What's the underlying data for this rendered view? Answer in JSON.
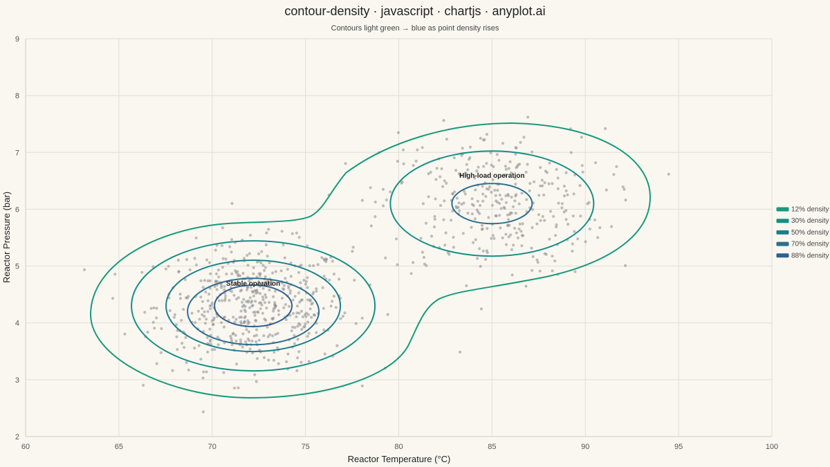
{
  "chart_data": {
    "type": "contour",
    "title": "contour-density · javascript · chartjs · anyplot.ai",
    "subtitle": "Contours light green → blue as point density rises",
    "xlabel": "Reactor Temperature (°C)",
    "ylabel": "Reactor Pressure (bar)",
    "xlim": [
      60,
      100
    ],
    "ylim": [
      2,
      9
    ],
    "xticks": [
      60,
      65,
      70,
      75,
      80,
      85,
      90,
      95,
      100
    ],
    "yticks": [
      2,
      3,
      4,
      5,
      6,
      7,
      8,
      9
    ],
    "grid": true,
    "legend_position": "right",
    "clusters": [
      {
        "center_x": 72.2,
        "center_y": 4.3,
        "spread_x": 2.6,
        "spread_y": 0.55,
        "points": 520
      },
      {
        "center_x": 85.0,
        "center_y": 6.1,
        "spread_x": 3.0,
        "spread_y": 0.65,
        "points": 330
      }
    ],
    "series": [
      {
        "name": "12% density",
        "color": "#159a7a"
      },
      {
        "name": "30% density",
        "color": "#148f85"
      },
      {
        "name": "50% density",
        "color": "#1b7f8b"
      },
      {
        "name": "70% density",
        "color": "#2a6f8e"
      },
      {
        "name": "88% density",
        "color": "#305f92"
      }
    ],
    "annotations": [
      {
        "text": "Stable operation",
        "x": 72.2,
        "y": 4.7
      },
      {
        "text": "High-load operation",
        "x": 85.0,
        "y": 6.6
      }
    ]
  }
}
